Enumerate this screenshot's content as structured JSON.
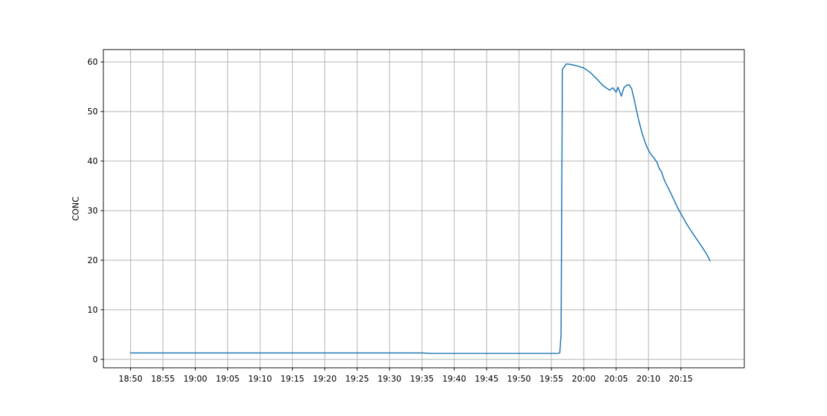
{
  "chart_data": {
    "type": "line",
    "title": "",
    "xlabel": "",
    "ylabel": "CONC",
    "grid": true,
    "x_ticks": [
      "18:50",
      "18:55",
      "19:00",
      "19:05",
      "19:10",
      "19:15",
      "19:20",
      "19:25",
      "19:30",
      "19:35",
      "19:40",
      "19:45",
      "19:50",
      "19:55",
      "20:00",
      "20:05",
      "20:10",
      "20:15"
    ],
    "xlim": [
      "18:45.8",
      "20:24.8"
    ],
    "ylim": [
      -1.7,
      62.5
    ],
    "y_ticks": [
      0,
      10,
      20,
      30,
      40,
      50,
      60
    ],
    "colors": {
      "series": "#1f77b4",
      "grid": "#b0b0b0",
      "axis": "#000000"
    },
    "series": [
      {
        "name": "",
        "x": [
          "18:50",
          "18:55",
          "19:00",
          "19:05",
          "19:10",
          "19:15",
          "19:20",
          "19:25",
          "19:30",
          "19:35",
          "19:36.5",
          "19:40",
          "19:45",
          "19:50",
          "19:55",
          "19:56.0",
          "19:56.3",
          "19:56.5",
          "19:56.7",
          "19:57.3",
          "19:58",
          "19:59",
          "20:00",
          "20:01",
          "20:02",
          "20:03",
          "20:04",
          "20:04.5",
          "20:05",
          "20:05.3",
          "20:05.5",
          "20:05.8",
          "20:06.2",
          "20:06.6",
          "20:07",
          "20:07.4",
          "20:07.8",
          "20:08.2",
          "20:08.6",
          "20:09",
          "20:09.4",
          "20:09.8",
          "20:10.3",
          "20:10.8",
          "20:11.3",
          "20:11.7",
          "20:12",
          "20:12.3",
          "20:12.5",
          "20:13",
          "20:13.5",
          "20:14",
          "20:14.5",
          "20:15",
          "20:16",
          "20:17",
          "20:18",
          "20:19",
          "20:19.5"
        ],
        "y": [
          1.3,
          1.3,
          1.3,
          1.3,
          1.3,
          1.3,
          1.3,
          1.3,
          1.3,
          1.3,
          1.2,
          1.2,
          1.2,
          1.2,
          1.2,
          1.2,
          1.3,
          5.0,
          58.5,
          59.6,
          59.5,
          59.2,
          58.8,
          57.9,
          56.6,
          55.2,
          54.3,
          54.8,
          53.9,
          54.9,
          54.2,
          53.1,
          54.8,
          55.3,
          55.4,
          54.6,
          52.4,
          49.9,
          47.7,
          45.7,
          44.1,
          42.7,
          41.5,
          40.7,
          39.8,
          38.4,
          37.9,
          36.7,
          36.0,
          34.7,
          33.4,
          32.0,
          30.6,
          29.4,
          27.1,
          25.1,
          23.2,
          21.2,
          19.9
        ]
      }
    ]
  }
}
